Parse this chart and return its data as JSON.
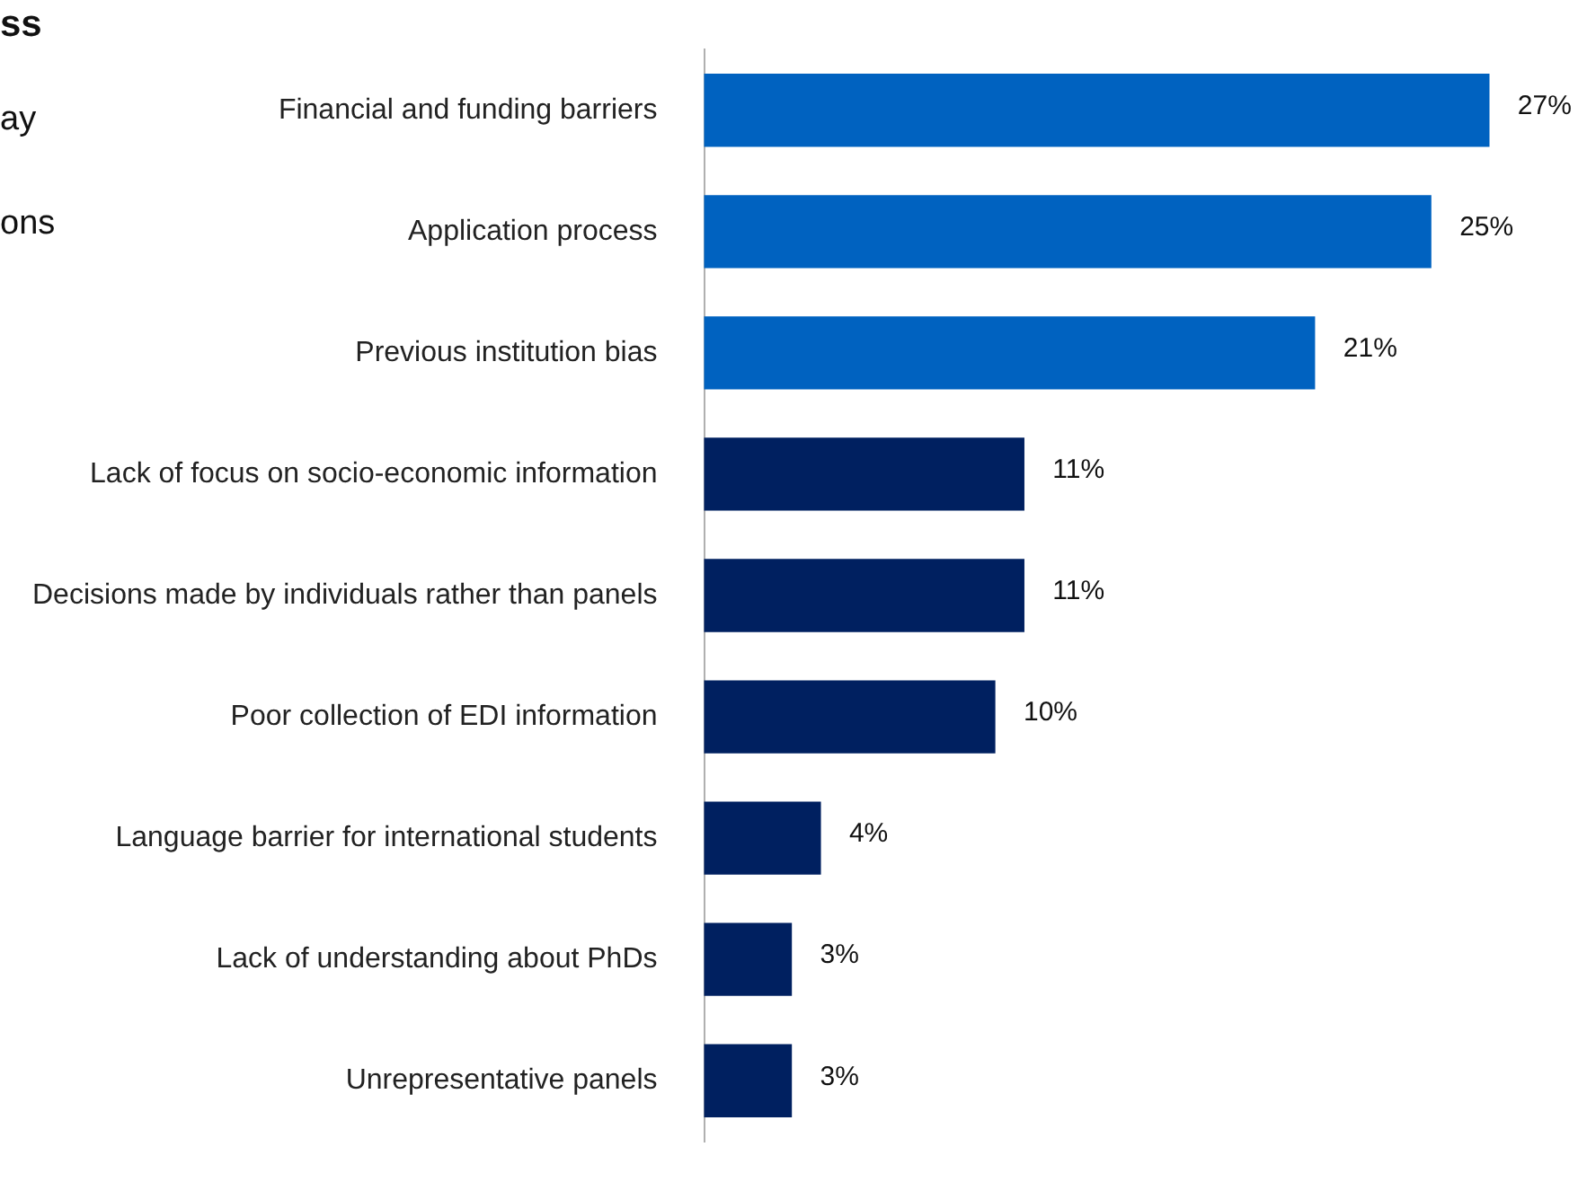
{
  "chart_data": {
    "type": "bar",
    "orientation": "horizontal",
    "title": "ss",
    "annotations": [
      "ay",
      "ons"
    ],
    "categories": [
      "Financial and funding barriers",
      "Application process",
      "Previous institution bias",
      "Lack of focus on socio-economic information",
      "Decisions made by individuals rather than panels",
      "Poor collection of EDI information",
      "Language barrier for international students",
      "Lack of understanding about PhDs",
      "Unrepresentative panels"
    ],
    "values": [
      27,
      25,
      21,
      11,
      11,
      10,
      4,
      3,
      3
    ],
    "value_labels": [
      "27%",
      "25%",
      "21%",
      "11%",
      "11%",
      "10%",
      "4%",
      "3%",
      "3%"
    ],
    "colors": [
      "#0062c0",
      "#0062c0",
      "#0062c0",
      "#002060",
      "#002060",
      "#002060",
      "#002060",
      "#002060",
      "#002060"
    ]
  }
}
